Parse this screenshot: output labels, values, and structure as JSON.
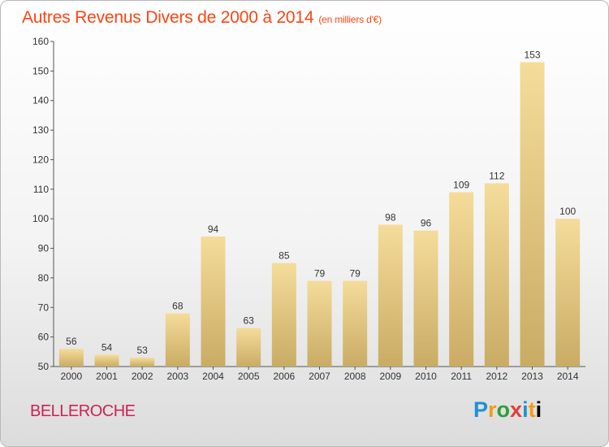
{
  "header": {
    "title": "Autres Revenus Divers de 2000 à 2014",
    "unit": "(en milliers d'€)"
  },
  "footer": {
    "commune": "BELLEROCHE",
    "logo_letters": [
      "P",
      "r",
      "o",
      "x",
      "i",
      "t",
      "i"
    ]
  },
  "colors": {
    "title": "#ff4411",
    "commune": "#cc2255",
    "bar_light": "#f5dc9a",
    "bar_dark": "#c9ac64"
  },
  "chart_data": {
    "type": "bar",
    "categories": [
      "2000",
      "2001",
      "2002",
      "2003",
      "2004",
      "2005",
      "2006",
      "2007",
      "2008",
      "2009",
      "2010",
      "2011",
      "2012",
      "2013",
      "2014"
    ],
    "values": [
      56,
      54,
      53,
      68,
      94,
      63,
      85,
      79,
      79,
      98,
      96,
      109,
      112,
      153,
      100
    ],
    "title": "Autres Revenus Divers de 2000 à 2014",
    "xlabel": "",
    "ylabel": "",
    "ylim": [
      50,
      160
    ],
    "yticks": [
      50,
      60,
      70,
      80,
      90,
      100,
      110,
      120,
      130,
      140,
      150,
      160
    ],
    "grid": false,
    "legend": "none"
  }
}
